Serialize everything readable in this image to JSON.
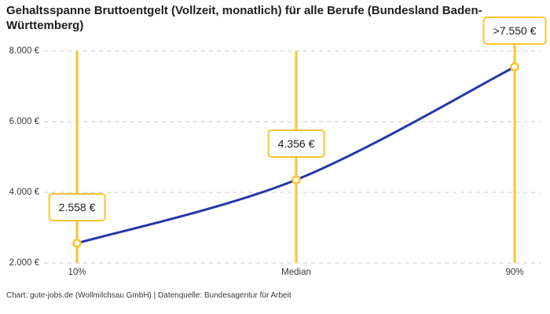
{
  "title": "Gehaltsspanne Bruttoentgelt (Vollzeit, monatlich) für alle Berufe (Bundesland Baden-Württemberg)",
  "attribution": "Chart: gute-jobs.de (Wollmilchsau GmbH) | Datenquelle: Bundesagentur für Arbeit",
  "colors": {
    "accent_yellow": "#FBC32C",
    "line_blue": "#2438A6",
    "grid": "#C9C9C9",
    "text_dark": "#1D1D1D",
    "axis_text": "#3A3A3A",
    "box_fill": "#FFFFFF"
  },
  "chart_data": {
    "type": "line",
    "title": "Gehaltsspanne Bruttoentgelt (Vollzeit, monatlich) für alle Berufe (Bundesland Baden-Württemberg)",
    "categories": [
      "10%",
      "Median",
      "90%"
    ],
    "values": [
      2558,
      4356,
      7550
    ],
    "point_labels": [
      "2.558 €",
      "4.356 €",
      ">7.550 €"
    ],
    "ylim": [
      2000,
      8000
    ],
    "ytick_values": [
      2000,
      4000,
      6000,
      8000
    ],
    "ytick_labels": [
      "2.000 €",
      "4.000 €",
      "6.000 €",
      "8.000 €"
    ],
    "xlabel": "",
    "ylabel": "",
    "grid": "horizontal-dashed",
    "legend": "none",
    "marker": "open-circle-yellow-on-white",
    "annotation_style": "yellow-outlined-value-boxes-on-vertical-rules"
  }
}
